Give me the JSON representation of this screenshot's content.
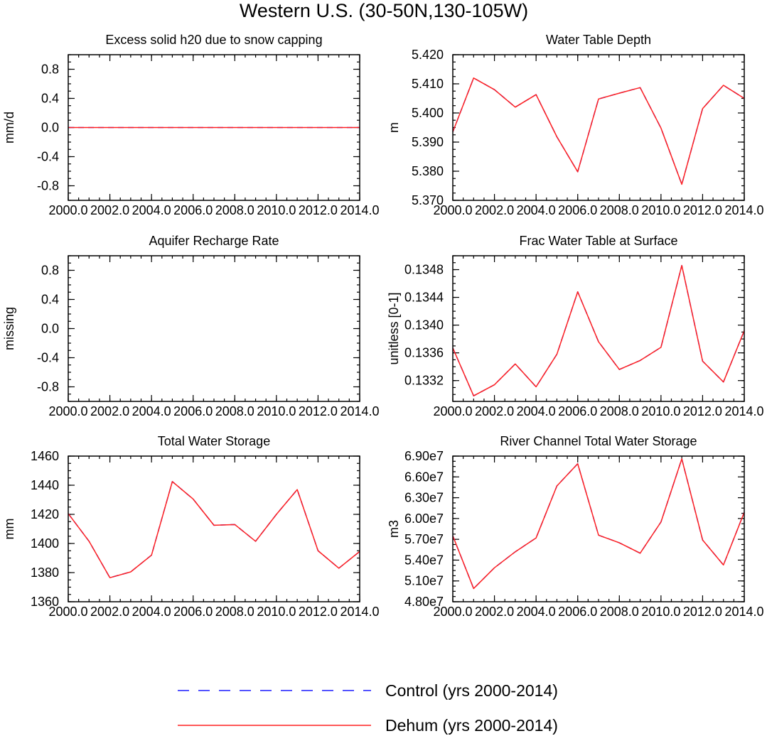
{
  "figure_title": "Western U.S. (30-50N,130-105W)",
  "colors": {
    "control": "#1a1aff",
    "dehum": "#ff2020",
    "axes": "#000000"
  },
  "legend": [
    {
      "label": "Control (yrs 2000-2014)",
      "style": "dashed",
      "color": "#1a1aff"
    },
    {
      "label": "Dehum (yrs 2000-2014)",
      "style": "solid",
      "color": "#ff2020"
    }
  ],
  "chart_data": [
    {
      "type": "line",
      "title": "Excess solid h20 due to snow capping",
      "ylabel": "mm/d",
      "xlim": [
        2000,
        2014
      ],
      "ylim": [
        -1,
        1
      ],
      "xticks": [
        2000,
        2002,
        2004,
        2006,
        2008,
        2010,
        2012,
        2014
      ],
      "xtick_labels": [
        "2000.0",
        "2002.0",
        "2004.0",
        "2006.0",
        "2008.0",
        "2010.0",
        "2012.0",
        "2014.0"
      ],
      "yticks": [
        -0.8,
        -0.4,
        0.0,
        0.4,
        0.8
      ],
      "ytick_labels": [
        "-0.8",
        "-0.4",
        "0.0",
        "0.4",
        "0.8"
      ],
      "x": [
        2000,
        2001,
        2002,
        2003,
        2004,
        2005,
        2006,
        2007,
        2008,
        2009,
        2010,
        2011,
        2012,
        2013,
        2014
      ],
      "series": [
        {
          "name": "Control (yrs 2000-2014)",
          "values": [
            0,
            0,
            0,
            0,
            0,
            0,
            0,
            0,
            0,
            0,
            0,
            0,
            0,
            0,
            0
          ]
        },
        {
          "name": "Dehum (yrs 2000-2014)",
          "values": [
            0,
            0,
            0,
            0,
            0,
            0,
            0,
            0,
            0,
            0,
            0,
            0,
            0,
            0,
            0
          ]
        }
      ]
    },
    {
      "type": "line",
      "title": "Water Table Depth",
      "ylabel": "m",
      "xlim": [
        2000,
        2014
      ],
      "ylim": [
        5.37,
        5.42
      ],
      "xticks": [
        2000,
        2002,
        2004,
        2006,
        2008,
        2010,
        2012,
        2014
      ],
      "xtick_labels": [
        "2000.0",
        "2002.0",
        "2004.0",
        "2006.0",
        "2008.0",
        "2010.0",
        "2012.0",
        "2014.0"
      ],
      "yticks": [
        5.37,
        5.38,
        5.39,
        5.4,
        5.41,
        5.42
      ],
      "ytick_labels": [
        "5.370",
        "5.380",
        "5.390",
        "5.400",
        "5.410",
        "5.420"
      ],
      "x": [
        2000,
        2001,
        2002,
        2003,
        2004,
        2005,
        2006,
        2007,
        2008,
        2009,
        2010,
        2011,
        2012,
        2013,
        2014
      ],
      "series": [
        {
          "name": "Control (yrs 2000-2014)",
          "values": [
            5.3935,
            5.412,
            5.408,
            5.402,
            5.4063,
            5.3918,
            5.3798,
            5.4048,
            5.4068,
            5.4087,
            5.3948,
            5.3755,
            5.4015,
            5.4095,
            5.405
          ]
        },
        {
          "name": "Dehum (yrs 2000-2014)",
          "values": [
            5.3935,
            5.412,
            5.408,
            5.402,
            5.4063,
            5.3918,
            5.3798,
            5.4048,
            5.4068,
            5.4087,
            5.3948,
            5.3755,
            5.4015,
            5.4095,
            5.405
          ]
        }
      ]
    },
    {
      "type": "line",
      "title": "Aquifer Recharge Rate",
      "ylabel": "missing",
      "xlim": [
        2000,
        2014
      ],
      "ylim": [
        -1,
        1
      ],
      "xticks": [
        2000,
        2002,
        2004,
        2006,
        2008,
        2010,
        2012,
        2014
      ],
      "xtick_labels": [
        "2000.0",
        "2002.0",
        "2004.0",
        "2006.0",
        "2008.0",
        "2010.0",
        "2012.0",
        "2014.0"
      ],
      "yticks": [
        -0.8,
        -0.4,
        0.0,
        0.4,
        0.8
      ],
      "ytick_labels": [
        "-0.8",
        "-0.4",
        "0.0",
        "0.4",
        "0.8"
      ],
      "x": [],
      "series": []
    },
    {
      "type": "line",
      "title": "Frac Water Table at Surface",
      "ylabel": "unitless [0-1]",
      "xlim": [
        2000,
        2014
      ],
      "ylim": [
        0.1329,
        0.135
      ],
      "xticks": [
        2000,
        2002,
        2004,
        2006,
        2008,
        2010,
        2012,
        2014
      ],
      "xtick_labels": [
        "2000.0",
        "2002.0",
        "2004.0",
        "2006.0",
        "2008.0",
        "2010.0",
        "2012.0",
        "2014.0"
      ],
      "yticks": [
        0.1332,
        0.1336,
        0.134,
        0.1344,
        0.1348
      ],
      "ytick_labels": [
        "0.1332",
        "0.1336",
        "0.1340",
        "0.1344",
        "0.1348"
      ],
      "x": [
        2000,
        2001,
        2002,
        2003,
        2004,
        2005,
        2006,
        2007,
        2008,
        2009,
        2010,
        2011,
        2012,
        2013,
        2014
      ],
      "series": [
        {
          "name": "Control (yrs 2000-2014)",
          "values": [
            0.13367,
            0.13298,
            0.13314,
            0.13344,
            0.13311,
            0.13358,
            0.13448,
            0.13376,
            0.13336,
            0.13349,
            0.13368,
            0.13486,
            0.13348,
            0.13318,
            0.13392
          ]
        },
        {
          "name": "Dehum (yrs 2000-2014)",
          "values": [
            0.13367,
            0.13298,
            0.13314,
            0.13344,
            0.13311,
            0.13358,
            0.13448,
            0.13376,
            0.13336,
            0.13349,
            0.13368,
            0.13486,
            0.13348,
            0.13318,
            0.13392
          ]
        }
      ]
    },
    {
      "type": "line",
      "title": "Total Water Storage",
      "ylabel": "mm",
      "xlim": [
        2000,
        2014
      ],
      "ylim": [
        1360,
        1460
      ],
      "xticks": [
        2000,
        2002,
        2004,
        2006,
        2008,
        2010,
        2012,
        2014
      ],
      "xtick_labels": [
        "2000.0",
        "2002.0",
        "2004.0",
        "2006.0",
        "2008.0",
        "2010.0",
        "2012.0",
        "2014.0"
      ],
      "yticks": [
        1360,
        1380,
        1400,
        1420,
        1440,
        1460
      ],
      "ytick_labels": [
        "1360",
        "1380",
        "1400",
        "1420",
        "1440",
        "1460"
      ],
      "x": [
        2000,
        2001,
        2002,
        2003,
        2004,
        2005,
        2006,
        2007,
        2008,
        2009,
        2010,
        2011,
        2012,
        2013,
        2014
      ],
      "series": [
        {
          "name": "Control (yrs 2000-2014)",
          "values": [
            1420.5,
            1401.5,
            1376.5,
            1380.5,
            1392,
            1442.5,
            1430.5,
            1412.5,
            1413,
            1401.5,
            1420,
            1437,
            1395,
            1383,
            1394.5
          ]
        },
        {
          "name": "Dehum (yrs 2000-2014)",
          "values": [
            1420.5,
            1401.5,
            1376.5,
            1380.5,
            1392,
            1442.5,
            1430.5,
            1412.5,
            1413,
            1401.5,
            1420,
            1437,
            1395,
            1383,
            1394.5
          ]
        }
      ]
    },
    {
      "type": "line",
      "title": "River Channel Total Water Storage",
      "ylabel": "m3",
      "xlim": [
        2000,
        2014
      ],
      "ylim": [
        48000000,
        69000000
      ],
      "xticks": [
        2000,
        2002,
        2004,
        2006,
        2008,
        2010,
        2012,
        2014
      ],
      "xtick_labels": [
        "2000.0",
        "2002.0",
        "2004.0",
        "2006.0",
        "2008.0",
        "2010.0",
        "2012.0",
        "2014.0"
      ],
      "yticks": [
        48000000,
        51000000,
        54000000,
        57000000,
        60000000,
        63000000,
        66000000,
        69000000
      ],
      "ytick_labels": [
        "4.80e7",
        "5.10e7",
        "5.40e7",
        "5.70e7",
        "6.00e7",
        "6.30e7",
        "6.60e7",
        "6.90e7"
      ],
      "x": [
        2000,
        2001,
        2002,
        2003,
        2004,
        2005,
        2006,
        2007,
        2008,
        2009,
        2010,
        2011,
        2012,
        2013,
        2014
      ],
      "series": [
        {
          "name": "Control (yrs 2000-2014)",
          "values": [
            57500000,
            49900000,
            52900000,
            55200000,
            57200000,
            64700000,
            67900000,
            57600000,
            56500000,
            55000000,
            59500000,
            68600000,
            56900000,
            53300000,
            60900000
          ]
        },
        {
          "name": "Dehum (yrs 2000-2014)",
          "values": [
            57500000,
            49900000,
            52900000,
            55200000,
            57200000,
            64700000,
            67900000,
            57600000,
            56500000,
            55000000,
            59500000,
            68600000,
            56900000,
            53300000,
            60900000
          ]
        }
      ]
    }
  ]
}
